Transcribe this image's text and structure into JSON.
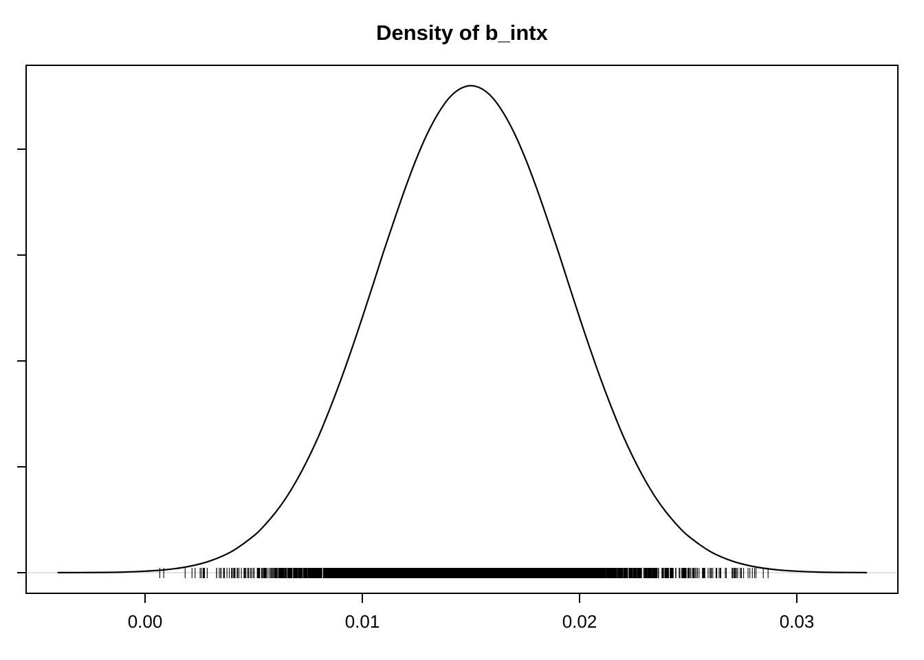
{
  "title": "Density of b_intx",
  "colors": {
    "foreground": "#000000",
    "zero_line": "#d8d8d8",
    "background": "#ffffff"
  },
  "chart_data": {
    "type": "line",
    "subtype": "kernel-density-with-rug",
    "title": "Density of b_intx",
    "xlabel": "",
    "ylabel": "",
    "grid": false,
    "legend": null,
    "x_axis": {
      "tick_values": [
        0.0,
        0.01,
        0.02,
        0.03
      ],
      "tick_labels": [
        "0.00",
        "0.01",
        "0.02",
        "0.03"
      ],
      "range": [
        -0.0055,
        0.0347
      ]
    },
    "y_axis": {
      "tick_values": [
        0,
        20,
        40,
        60,
        80
      ],
      "labels_visible": false,
      "range": [
        -3.9,
        95.8
      ]
    },
    "density": {
      "peak_x": 0.015,
      "peak_density": 92,
      "points": [
        [
          -0.004,
          0.01
        ],
        [
          -0.003,
          0.02
        ],
        [
          -0.002,
          0.05
        ],
        [
          -0.001,
          0.12
        ],
        [
          0.0,
          0.28
        ],
        [
          0.001,
          0.58
        ],
        [
          0.002,
          1.17
        ],
        [
          0.003,
          2.23
        ],
        [
          0.004,
          4.04
        ],
        [
          0.005,
          6.95
        ],
        [
          0.0055,
          8.95
        ],
        [
          0.006,
          11.35
        ],
        [
          0.0065,
          14.2
        ],
        [
          0.007,
          17.6
        ],
        [
          0.0075,
          21.5
        ],
        [
          0.008,
          25.9
        ],
        [
          0.0085,
          30.9
        ],
        [
          0.009,
          36.3
        ],
        [
          0.0095,
          42.1
        ],
        [
          0.01,
          48.2
        ],
        [
          0.0105,
          54.5
        ],
        [
          0.011,
          60.9
        ],
        [
          0.0115,
          67.0
        ],
        [
          0.012,
          72.9
        ],
        [
          0.0125,
          78.3
        ],
        [
          0.013,
          83.0
        ],
        [
          0.0135,
          86.8
        ],
        [
          0.014,
          89.7
        ],
        [
          0.0145,
          91.4
        ],
        [
          0.015,
          92.0
        ],
        [
          0.0155,
          91.4
        ],
        [
          0.016,
          89.7
        ],
        [
          0.0165,
          86.8
        ],
        [
          0.017,
          83.0
        ],
        [
          0.0175,
          78.3
        ],
        [
          0.018,
          72.9
        ],
        [
          0.0185,
          67.0
        ],
        [
          0.019,
          60.9
        ],
        [
          0.0195,
          54.5
        ],
        [
          0.02,
          48.2
        ],
        [
          0.0205,
          42.1
        ],
        [
          0.021,
          36.3
        ],
        [
          0.0215,
          30.9
        ],
        [
          0.022,
          25.9
        ],
        [
          0.0225,
          21.5
        ],
        [
          0.023,
          17.6
        ],
        [
          0.0235,
          14.2
        ],
        [
          0.024,
          11.35
        ],
        [
          0.0245,
          8.95
        ],
        [
          0.025,
          6.95
        ],
        [
          0.026,
          4.04
        ],
        [
          0.027,
          2.23
        ],
        [
          0.028,
          1.17
        ],
        [
          0.029,
          0.58
        ],
        [
          0.03,
          0.28
        ],
        [
          0.031,
          0.12
        ],
        [
          0.032,
          0.05
        ],
        [
          0.033,
          0.02
        ],
        [
          0.0332,
          0.01
        ]
      ]
    },
    "rug": {
      "n": 4000,
      "mean": 0.015,
      "sd": 0.0044,
      "min": 0.0004,
      "max": 0.0312
    }
  }
}
